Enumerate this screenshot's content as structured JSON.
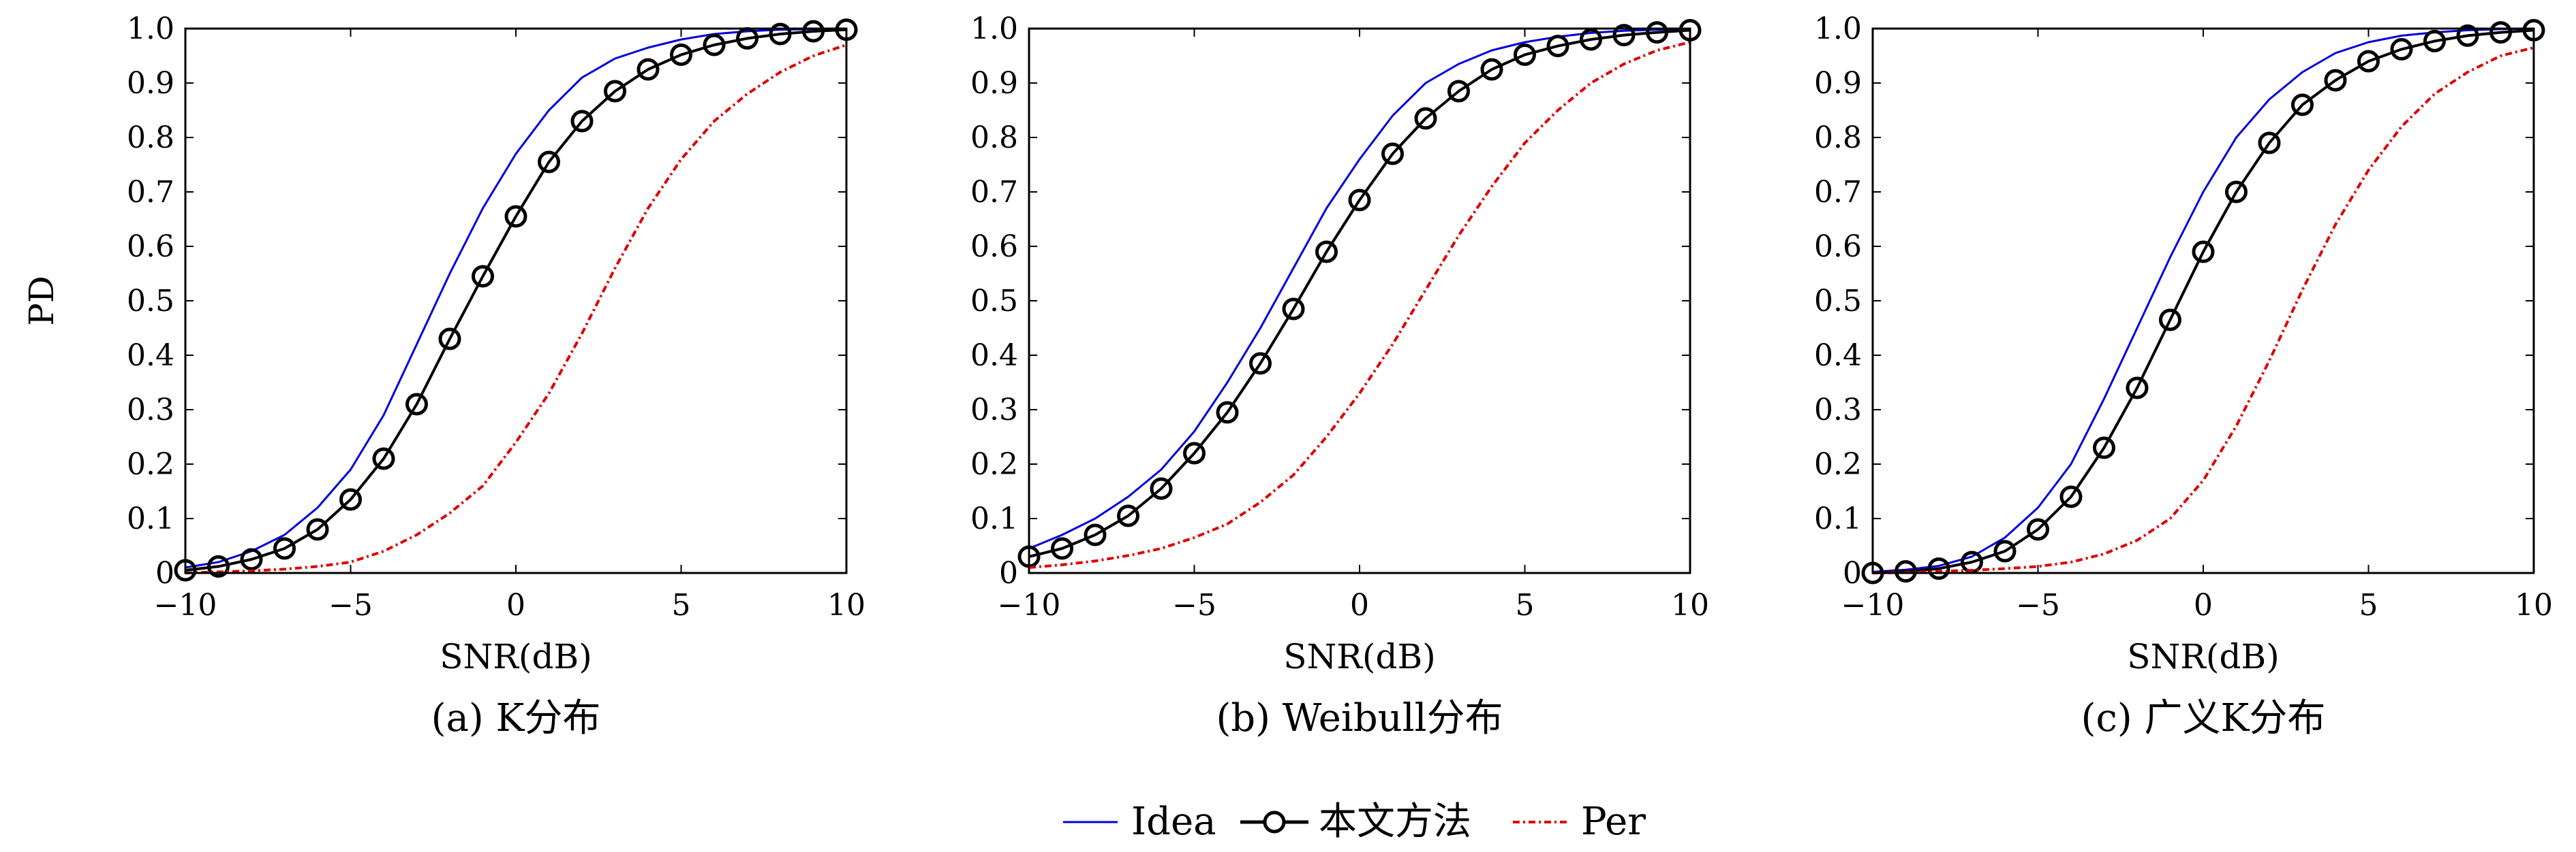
{
  "colors": {
    "idea": "#0000dd",
    "method": "#000000",
    "per": "#dd0000"
  },
  "legend": {
    "idea": "Idea",
    "method": "本文方法",
    "per": "Per"
  },
  "chart_data": [
    {
      "type": "line",
      "caption": "(a) K分布",
      "xlabel": "SNR(dB)",
      "ylabel": "PD",
      "xlim": [
        -10,
        10
      ],
      "ylim": [
        0,
        1
      ],
      "xticks": [
        "−10",
        "−5",
        "0",
        "5",
        "10"
      ],
      "yticks": [
        "0",
        "0.1",
        "0.2",
        "0.3",
        "0.4",
        "0.5",
        "0.6",
        "0.7",
        "0.8",
        "0.9",
        "1.0"
      ],
      "x": [
        -10,
        -9,
        -8,
        -7,
        -6,
        -5,
        -4,
        -3,
        -2,
        -1,
        0,
        1,
        2,
        3,
        4,
        5,
        6,
        7,
        8,
        9,
        10
      ],
      "series": [
        {
          "name": "Idea",
          "values": [
            0.01,
            0.02,
            0.04,
            0.07,
            0.12,
            0.19,
            0.29,
            0.42,
            0.55,
            0.67,
            0.77,
            0.85,
            0.91,
            0.945,
            0.965,
            0.98,
            0.99,
            0.995,
            0.998,
            0.999,
            1.0
          ]
        },
        {
          "name": "本文方法",
          "values": [
            0.005,
            0.012,
            0.025,
            0.045,
            0.08,
            0.135,
            0.21,
            0.31,
            0.43,
            0.545,
            0.655,
            0.755,
            0.83,
            0.885,
            0.925,
            0.952,
            0.97,
            0.982,
            0.99,
            0.995,
            0.998
          ]
        },
        {
          "name": "Per",
          "values": [
            0.0,
            0.002,
            0.004,
            0.007,
            0.012,
            0.02,
            0.04,
            0.07,
            0.11,
            0.16,
            0.24,
            0.33,
            0.44,
            0.56,
            0.67,
            0.76,
            0.83,
            0.88,
            0.92,
            0.95,
            0.97
          ]
        }
      ]
    },
    {
      "type": "line",
      "caption": "(b) Weibull分布",
      "xlabel": "SNR(dB)",
      "ylabel": "",
      "xlim": [
        -10,
        10
      ],
      "ylim": [
        0,
        1
      ],
      "xticks": [
        "−10",
        "−5",
        "0",
        "5",
        "10"
      ],
      "yticks": [
        "0",
        "0.1",
        "0.2",
        "0.3",
        "0.4",
        "0.5",
        "0.6",
        "0.7",
        "0.8",
        "0.9",
        "1.0"
      ],
      "x": [
        -10,
        -9,
        -8,
        -7,
        -6,
        -5,
        -4,
        -3,
        -2,
        -1,
        0,
        1,
        2,
        3,
        4,
        5,
        6,
        7,
        8,
        9,
        10
      ],
      "series": [
        {
          "name": "Idea",
          "values": [
            0.045,
            0.07,
            0.1,
            0.14,
            0.19,
            0.26,
            0.35,
            0.45,
            0.56,
            0.67,
            0.76,
            0.84,
            0.9,
            0.935,
            0.96,
            0.975,
            0.985,
            0.992,
            0.996,
            0.998,
            1.0
          ]
        },
        {
          "name": "本文方法",
          "values": [
            0.03,
            0.045,
            0.07,
            0.105,
            0.155,
            0.22,
            0.295,
            0.385,
            0.485,
            0.59,
            0.685,
            0.77,
            0.835,
            0.885,
            0.925,
            0.952,
            0.968,
            0.98,
            0.988,
            0.993,
            0.997
          ]
        },
        {
          "name": "Per",
          "values": [
            0.01,
            0.015,
            0.022,
            0.032,
            0.045,
            0.065,
            0.09,
            0.13,
            0.18,
            0.25,
            0.33,
            0.42,
            0.52,
            0.62,
            0.71,
            0.79,
            0.85,
            0.9,
            0.935,
            0.96,
            0.975
          ]
        }
      ]
    },
    {
      "type": "line",
      "caption": "(c) 广义K分布",
      "xlabel": "SNR(dB)",
      "ylabel": "",
      "xlim": [
        -10,
        10
      ],
      "ylim": [
        0,
        1
      ],
      "xticks": [
        "−10",
        "−5",
        "0",
        "5",
        "10"
      ],
      "yticks": [
        "0",
        "0.1",
        "0.2",
        "0.3",
        "0.4",
        "0.5",
        "0.6",
        "0.7",
        "0.8",
        "0.9",
        "1.0"
      ],
      "x": [
        -10,
        -9,
        -8,
        -7,
        -6,
        -5,
        -4,
        -3,
        -2,
        -1,
        0,
        1,
        2,
        3,
        4,
        5,
        6,
        7,
        8,
        9,
        10
      ],
      "series": [
        {
          "name": "Idea",
          "values": [
            0.002,
            0.006,
            0.013,
            0.03,
            0.065,
            0.12,
            0.2,
            0.32,
            0.45,
            0.58,
            0.7,
            0.8,
            0.87,
            0.92,
            0.955,
            0.975,
            0.987,
            0.993,
            0.997,
            0.999,
            1.0
          ]
        },
        {
          "name": "本文方法",
          "values": [
            0.0,
            0.003,
            0.008,
            0.02,
            0.04,
            0.08,
            0.14,
            0.23,
            0.34,
            0.465,
            0.59,
            0.7,
            0.79,
            0.86,
            0.905,
            0.94,
            0.962,
            0.977,
            0.987,
            0.993,
            0.997
          ]
        },
        {
          "name": "Per",
          "values": [
            0.0,
            0.001,
            0.003,
            0.005,
            0.008,
            0.012,
            0.02,
            0.035,
            0.06,
            0.1,
            0.17,
            0.27,
            0.39,
            0.52,
            0.64,
            0.74,
            0.82,
            0.88,
            0.92,
            0.95,
            0.965
          ]
        }
      ]
    }
  ]
}
